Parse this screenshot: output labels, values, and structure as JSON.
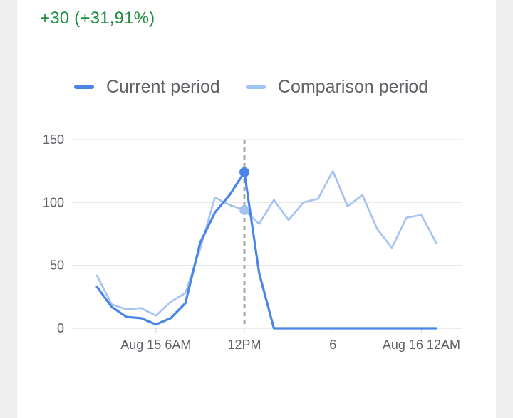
{
  "summary": {
    "delta": "+30 (+31,91%)",
    "delta_color": "#1e8e3e"
  },
  "legend": {
    "current_label": "Current period",
    "comparison_label": "Comparison period"
  },
  "colors": {
    "current": "#4a86e8",
    "comparison": "#a4c2f4",
    "grid": "#e6e6e6",
    "axis_text": "#5f6368",
    "cursor_line": "#a8a8a8"
  },
  "chart_data": {
    "type": "line",
    "x_unit": "hour",
    "x": [
      1,
      2,
      3,
      4,
      5,
      6,
      7,
      8,
      9,
      10,
      11,
      12,
      13,
      14,
      15,
      16,
      17,
      18,
      19,
      20,
      21,
      22,
      23,
      24
    ],
    "series": [
      {
        "name": "Current period",
        "values": [
          33,
          17,
          9,
          8,
          3,
          8,
          20,
          68,
          92,
          106,
          124,
          44,
          0,
          0,
          0,
          0,
          0,
          0,
          0,
          0,
          0,
          0,
          0,
          0
        ]
      },
      {
        "name": "Comparison period",
        "values": [
          42,
          19,
          15,
          16,
          10,
          21,
          28,
          63,
          104,
          98,
          94,
          83,
          102,
          86,
          100,
          103,
          125,
          97,
          106,
          79,
          64,
          88,
          90,
          68
        ]
      }
    ],
    "ylim": [
      0,
      150
    ],
    "y_ticks": [
      0,
      50,
      100,
      150
    ],
    "x_ticks": [
      {
        "x": 5,
        "label": "Aug 15 6AM"
      },
      {
        "x": 11,
        "label": "12PM"
      },
      {
        "x": 17,
        "label": "6"
      },
      {
        "x": 23,
        "label": "Aug 16 12AM"
      }
    ],
    "highlight_x": 11,
    "grid": true,
    "legend_position": "top"
  }
}
